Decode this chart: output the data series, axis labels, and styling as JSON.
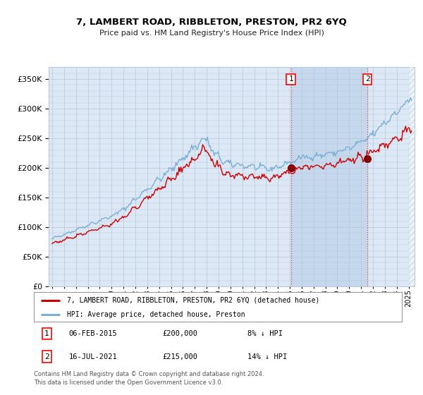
{
  "title": "7, LAMBERT ROAD, RIBBLETON, PRESTON, PR2 6YQ",
  "subtitle": "Price paid vs. HM Land Registry's House Price Index (HPI)",
  "legend_line1": "7, LAMBERT ROAD, RIBBLETON, PRESTON, PR2 6YQ (detached house)",
  "legend_line2": "HPI: Average price, detached house, Preston",
  "annotation1_label": "1",
  "annotation1_date": "06-FEB-2015",
  "annotation1_price": "£200,000",
  "annotation1_hpi": "8% ↓ HPI",
  "annotation2_label": "2",
  "annotation2_date": "16-JUL-2021",
  "annotation2_price": "£215,000",
  "annotation2_hpi": "14% ↓ HPI",
  "purchase1_year": 2015.09,
  "purchase1_value": 200000,
  "purchase2_year": 2021.54,
  "purchase2_value": 215000,
  "hpi_color": "#7bafd4",
  "price_color": "#cc0000",
  "point_color": "#880000",
  "background_color": "#ffffff",
  "plot_bg_color": "#dce8f5",
  "shade_color": "#c5d8ed",
  "grid_color": "#b8c8d8",
  "vline_color": "#ee4444",
  "ylim": [
    0,
    370000
  ],
  "xlim_start": 1994.7,
  "xlim_end": 2025.5,
  "footer": "Contains HM Land Registry data © Crown copyright and database right 2024.\nThis data is licensed under the Open Government Licence v3.0."
}
